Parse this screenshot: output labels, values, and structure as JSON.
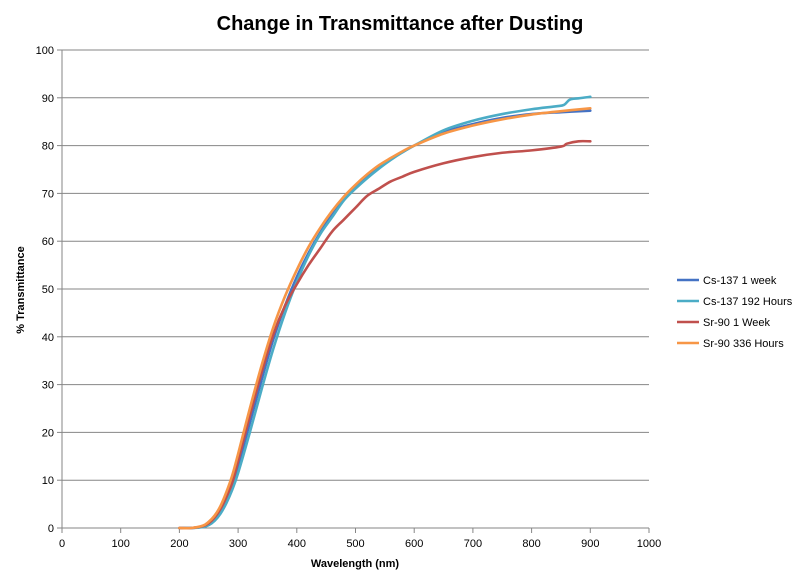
{
  "chart_data": {
    "type": "line",
    "title": "Change in Transmittance after Dusting",
    "xlabel": "Wavelength (nm)",
    "ylabel": "% Transmittance",
    "xlim": [
      0,
      1000
    ],
    "ylim": [
      0,
      100
    ],
    "x_ticks": [
      0,
      100,
      200,
      300,
      400,
      500,
      600,
      700,
      800,
      900,
      1000
    ],
    "y_ticks": [
      0,
      10,
      20,
      30,
      40,
      50,
      60,
      70,
      80,
      90,
      100
    ],
    "grid": "horizontal",
    "legend_position": "right",
    "series": [
      {
        "name": "Cs-137 1 week",
        "color": "#4472C4",
        "x": [
          200,
          220,
          240,
          250,
          260,
          270,
          280,
          290,
          300,
          320,
          340,
          360,
          380,
          400,
          420,
          440,
          460,
          480,
          500,
          520,
          540,
          560,
          580,
          600,
          650,
          700,
          750,
          800,
          850,
          900
        ],
        "y": [
          0,
          0,
          0.3,
          0.8,
          1.8,
          3.5,
          6.0,
          9.0,
          13.0,
          22.0,
          31.0,
          39.5,
          46.5,
          52.5,
          57.5,
          61.8,
          65.5,
          68.8,
          71.5,
          73.5,
          75.5,
          77.2,
          78.6,
          80.0,
          82.8,
          84.5,
          85.8,
          86.6,
          87.0,
          87.3
        ]
      },
      {
        "name": "Cs-137 192 Hours",
        "color": "#4BACC6",
        "x": [
          200,
          220,
          240,
          250,
          260,
          270,
          280,
          290,
          300,
          320,
          340,
          360,
          380,
          400,
          420,
          440,
          460,
          480,
          500,
          520,
          540,
          560,
          580,
          600,
          650,
          700,
          750,
          800,
          840,
          855,
          865,
          880,
          900
        ],
        "y": [
          0,
          0,
          0.2,
          0.6,
          1.5,
          3.0,
          5.2,
          8.0,
          11.5,
          20.0,
          29.0,
          37.5,
          45.0,
          51.5,
          57.0,
          61.5,
          65.0,
          68.5,
          71.0,
          73.2,
          75.2,
          77.0,
          78.6,
          80.0,
          83.2,
          85.2,
          86.6,
          87.6,
          88.2,
          88.5,
          89.6,
          89.9,
          90.2
        ]
      },
      {
        "name": "Sr-90 1 Week",
        "color": "#C0504D",
        "x": [
          200,
          220,
          240,
          250,
          260,
          270,
          280,
          290,
          300,
          320,
          340,
          360,
          380,
          400,
          420,
          440,
          460,
          480,
          500,
          520,
          540,
          560,
          580,
          600,
          650,
          700,
          750,
          800,
          850,
          860,
          880,
          900
        ],
        "y": [
          0,
          0,
          0.4,
          1.0,
          2.2,
          4.0,
          6.5,
          9.5,
          14.0,
          23.5,
          32.5,
          40.5,
          46.5,
          51.0,
          55.0,
          58.5,
          62.0,
          64.5,
          67.0,
          69.5,
          71.0,
          72.5,
          73.5,
          74.5,
          76.3,
          77.6,
          78.5,
          79.0,
          79.8,
          80.4,
          80.9,
          80.9
        ]
      },
      {
        "name": "Sr-90 336 Hours",
        "color": "#F79646",
        "x": [
          200,
          220,
          240,
          250,
          260,
          270,
          280,
          290,
          300,
          320,
          340,
          360,
          380,
          400,
          420,
          440,
          460,
          480,
          500,
          520,
          540,
          560,
          580,
          600,
          650,
          700,
          750,
          800,
          850,
          900
        ],
        "y": [
          0,
          0,
          0.5,
          1.3,
          2.6,
          4.6,
          7.5,
          11.0,
          15.5,
          25.0,
          34.0,
          42.0,
          48.5,
          54.0,
          58.8,
          62.8,
          66.3,
          69.3,
          71.8,
          74.0,
          75.9,
          77.4,
          78.8,
          80.0,
          82.5,
          84.2,
          85.5,
          86.5,
          87.2,
          87.8
        ]
      }
    ]
  }
}
